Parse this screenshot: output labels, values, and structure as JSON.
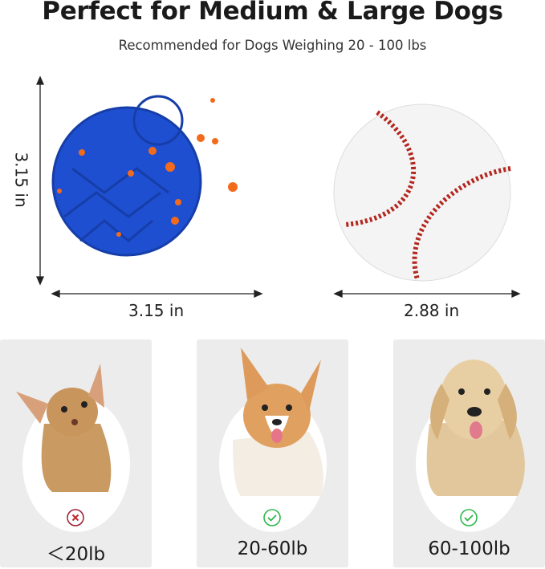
{
  "header": {
    "title": "Perfect for Medium & Large Dogs",
    "subtitle": "Recommended for Dogs Weighing 20 - 100 lbs"
  },
  "product": {
    "height_label": "3.15 in",
    "width_label": "3.15 in",
    "colors": {
      "ball": "#1f4fd1",
      "spots": "#f26b1d"
    }
  },
  "comparison": {
    "object": "baseball",
    "width_label": "2.88 in",
    "stitch_color": "#b3261e"
  },
  "dogs": [
    {
      "weight": "＜20lb",
      "suitable": false,
      "icon": "x-circle-icon",
      "icon_color": "#9b1b30"
    },
    {
      "weight": "20-60lb",
      "suitable": true,
      "icon": "check-circle-icon",
      "icon_color": "#2db84b"
    },
    {
      "weight": "60-100lb",
      "suitable": true,
      "icon": "check-circle-icon",
      "icon_color": "#2db84b"
    }
  ]
}
